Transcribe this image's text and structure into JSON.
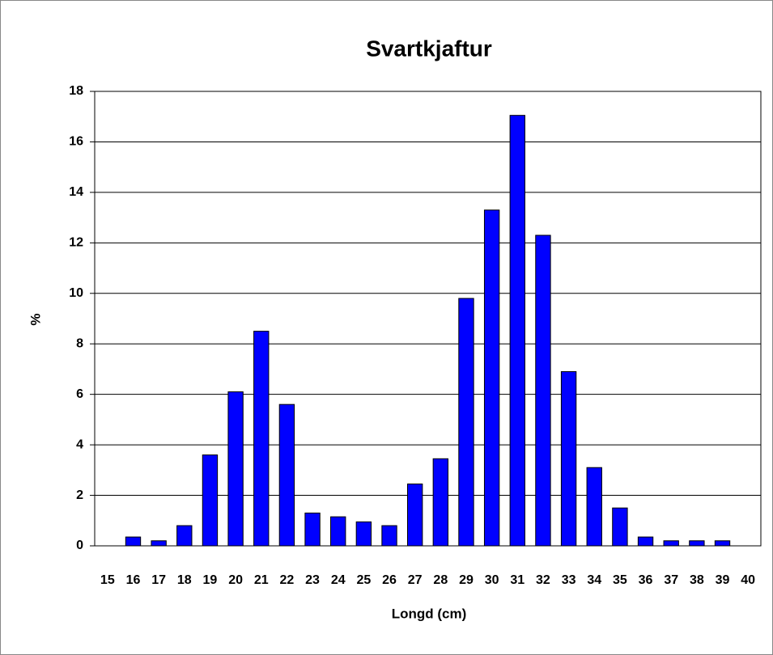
{
  "chart_data": {
    "type": "bar",
    "title": "Svartkjaftur",
    "x_label": "Longd (cm)",
    "y_label": "%",
    "categories": [
      "15",
      "16",
      "17",
      "18",
      "19",
      "20",
      "21",
      "22",
      "23",
      "24",
      "25",
      "26",
      "27",
      "28",
      "29",
      "30",
      "31",
      "32",
      "33",
      "34",
      "35",
      "36",
      "37",
      "38",
      "39",
      "40"
    ],
    "values": [
      0,
      0.35,
      0.2,
      0.8,
      3.6,
      6.1,
      8.5,
      5.6,
      1.3,
      1.15,
      0.95,
      0.8,
      2.45,
      3.45,
      9.8,
      13.3,
      17.05,
      12.3,
      6.9,
      3.1,
      1.5,
      0.35,
      0.2,
      0.2,
      0.2,
      0
    ],
    "color": "#0000ff",
    "ylim": [
      0,
      18
    ],
    "yticks": [
      0,
      2,
      4,
      6,
      8,
      10,
      12,
      14,
      16,
      18
    ],
    "grid": true
  }
}
